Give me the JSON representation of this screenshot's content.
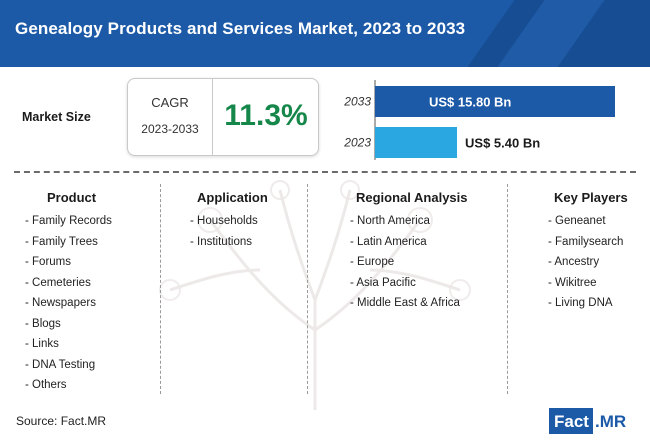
{
  "header": {
    "title": "Genealogy Products and Services Market, 2023 to 2033"
  },
  "market_size": {
    "label": "Market Size",
    "cagr_label": "CAGR",
    "cagr_period": "2023-2033",
    "cagr_value": "11.3%"
  },
  "chart_data": {
    "type": "bar",
    "orientation": "horizontal",
    "title": "Market Size",
    "categories": [
      "2033",
      "2023"
    ],
    "values": [
      15.8,
      5.4
    ],
    "value_labels": [
      "US$ 15.80 Bn",
      "US$ 5.40 Bn"
    ],
    "unit": "US$ Bn",
    "colors": [
      "#1c5aa8",
      "#2aa6e0"
    ],
    "xlim": [
      0,
      15.8
    ]
  },
  "segments": {
    "product": {
      "heading": "Product",
      "items": [
        "- Family Records",
        "- Family Trees",
        "- Forums",
        "- Cemeteries",
        "- Newspapers",
        "- Blogs",
        "- Links",
        "- DNA Testing",
        "- Others"
      ]
    },
    "application": {
      "heading": "Application",
      "items": [
        "- Households",
        "- Institutions"
      ]
    },
    "regional": {
      "heading": "Regional Analysis",
      "items": [
        "- North America",
        "- Latin America",
        "- Europe",
        "- Asia Pacific",
        "- Middle East & Africa"
      ]
    },
    "players": {
      "heading": "Key Players",
      "items": [
        "- Geneanet",
        "- Familysearch",
        "- Ancestry",
        "- Wikitree",
        "- Living DNA"
      ]
    }
  },
  "footer": {
    "source": "Source: Fact.MR",
    "logo_part1": "Fact",
    "logo_part2": ".MR"
  }
}
